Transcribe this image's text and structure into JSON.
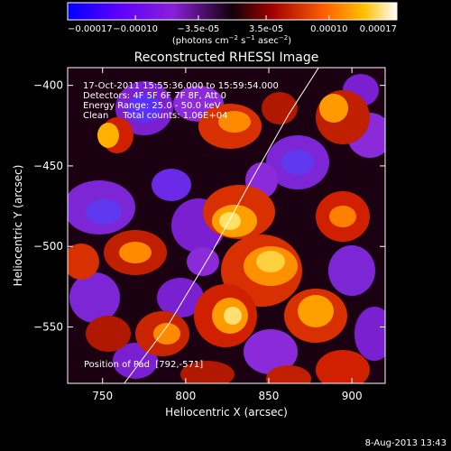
{
  "chart_data": {
    "type": "heatmap",
    "title": "Reconstructed RHESSI Image",
    "xlabel": "Heliocentric X (arcsec)",
    "ylabel": "Heliocentric Y (arcsec)",
    "xlim": [
      729,
      920
    ],
    "ylim": [
      -585,
      -389
    ],
    "x_ticks": [
      750,
      800,
      850,
      900
    ],
    "y_ticks": [
      -400,
      -450,
      -500,
      -550
    ],
    "colorbar": {
      "range": [
        -0.00017,
        0.00017
      ],
      "tick_values": [
        -0.00017,
        -0.0001,
        -3.5e-05,
        3.5e-05,
        0.0001,
        0.00017
      ],
      "tick_labels": [
        "-0.00017",
        "-0.00010",
        "-3.5e-05",
        "3.5e-05",
        "0.00010",
        "0.00017"
      ],
      "unit_label": "(photons cm-2 s-1 asec-2)"
    },
    "annotations": [
      "17-Oct-2011 15:55:36.000 to 15:59:54.000",
      "Detectors: 4F 5F 6F 7F 8F, Att 0",
      "Energy Range: 25.0 - 50.0 keV",
      "Clean     Total counts: 1.06E+04"
    ],
    "position_label": "Position of Pad  [792,-571]",
    "limb_curve": {
      "x": [
        763,
        790,
        815,
        840,
        862,
        880
      ],
      "y": [
        -585,
        -548,
        -505,
        -458,
        -418,
        -389
      ]
    },
    "grid": false,
    "legend": "none"
  },
  "footer_date": "8-Aug-2013 13:43"
}
